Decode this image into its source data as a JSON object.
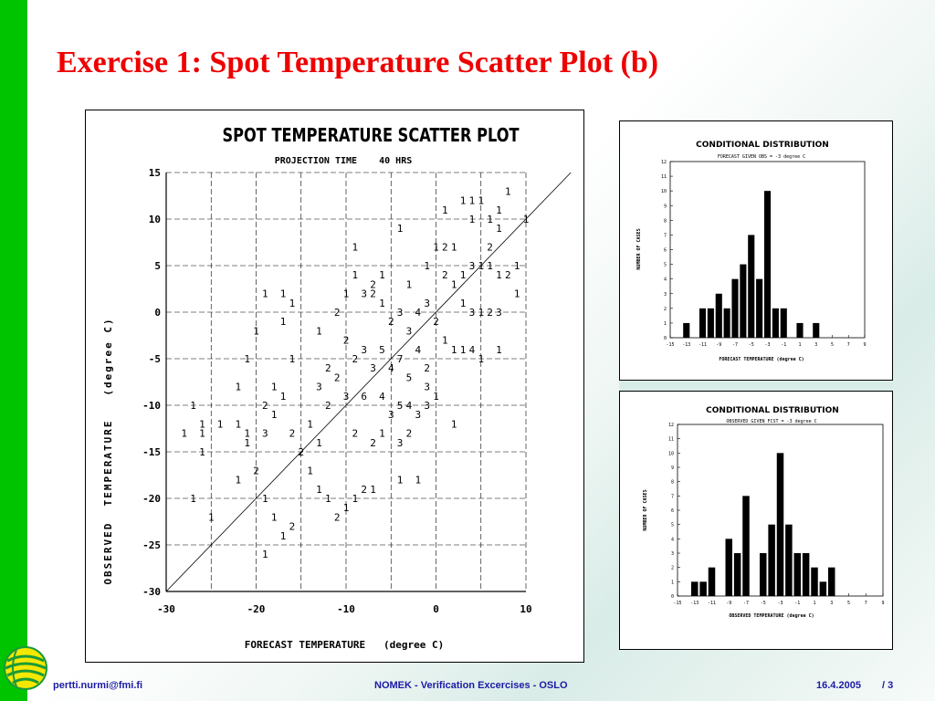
{
  "slide": {
    "title": "Exercise 1: Spot Temperature Scatter Plot (b)",
    "accent_bar_color": "#00c400",
    "title_color": "#ee0000"
  },
  "footer": {
    "email": "pertti.nurmi@fmi.fi",
    "center": "NOMEK - Verification Excercises - OSLO",
    "date": "16.4.2005",
    "page": "/ 3",
    "logo_icon": "fmi-globe-logo-icon"
  },
  "chart_data": [
    {
      "type": "scatter",
      "title": "SPOT TEMPERATURE SCATTER PLOT",
      "subtitle": "PROJECTION TIME    40 HRS",
      "xlabel": "FORECAST TEMPERATURE   (degree C)",
      "ylabel": "OBSERVED  TEMPERATURE   (degree C)",
      "xlim": [
        -30,
        10
      ],
      "ylim": [
        -30,
        15
      ],
      "x_ticks": [
        -30,
        -20,
        -10,
        0,
        10
      ],
      "x_tick_labels": [
        "-30",
        "-20",
        "-10",
        "0",
        "10"
      ],
      "y_ticks": [
        15,
        10,
        5,
        0,
        -5,
        -10,
        -15,
        -20,
        -25,
        -30
      ],
      "y_tick_labels": [
        "15",
        "10",
        "5",
        "0",
        "-5",
        "-10",
        "-15",
        "-20",
        "-25",
        "-30"
      ],
      "grid": true,
      "diagonal": true,
      "point_marker": "count glyph (digit = number of cases)",
      "points": [
        {
          "x": -27,
          "y": -10,
          "n": "1"
        },
        {
          "x": -26,
          "y": -12,
          "n": "1"
        },
        {
          "x": -28,
          "y": -13,
          "n": "1"
        },
        {
          "x": -26,
          "y": -13,
          "n": "1"
        },
        {
          "x": -27,
          "y": -20,
          "n": "1"
        },
        {
          "x": -25,
          "y": -22,
          "n": "1"
        },
        {
          "x": -26,
          "y": -15,
          "n": "1"
        },
        {
          "x": -24,
          "y": -12,
          "n": "1"
        },
        {
          "x": -22,
          "y": -12,
          "n": "1"
        },
        {
          "x": -21,
          "y": -14,
          "n": "1"
        },
        {
          "x": -22,
          "y": -18,
          "n": "1"
        },
        {
          "x": -20,
          "y": -17,
          "n": "2"
        },
        {
          "x": -21,
          "y": -13,
          "n": "1"
        },
        {
          "x": -19,
          "y": -13,
          "n": "3"
        },
        {
          "x": -19,
          "y": -20,
          "n": "1"
        },
        {
          "x": -18,
          "y": -22,
          "n": "1"
        },
        {
          "x": -17,
          "y": -24,
          "n": "1"
        },
        {
          "x": -16,
          "y": -23,
          "n": "2"
        },
        {
          "x": -19,
          "y": -26,
          "n": "1"
        },
        {
          "x": -22,
          "y": -8,
          "n": "1"
        },
        {
          "x": -21,
          "y": -5,
          "n": "1"
        },
        {
          "x": -20,
          "y": -2,
          "n": "1"
        },
        {
          "x": -19,
          "y": 2,
          "n": "1"
        },
        {
          "x": -17,
          "y": 2,
          "n": "1"
        },
        {
          "x": -16,
          "y": 1,
          "n": "1"
        },
        {
          "x": -17,
          "y": -1,
          "n": "1"
        },
        {
          "x": -18,
          "y": -8,
          "n": "1"
        },
        {
          "x": -19,
          "y": -10,
          "n": "2"
        },
        {
          "x": -18,
          "y": -11,
          "n": "1"
        },
        {
          "x": -17,
          "y": -9,
          "n": "1"
        },
        {
          "x": -16,
          "y": -5,
          "n": "1"
        },
        {
          "x": -16,
          "y": -13,
          "n": "2"
        },
        {
          "x": -15,
          "y": -15,
          "n": "2"
        },
        {
          "x": -14,
          "y": -12,
          "n": "1"
        },
        {
          "x": -13,
          "y": -8,
          "n": "3"
        },
        {
          "x": -12,
          "y": -6,
          "n": "2"
        },
        {
          "x": -11,
          "y": -7,
          "n": "2"
        },
        {
          "x": -12,
          "y": -10,
          "n": "2"
        },
        {
          "x": -13,
          "y": -14,
          "n": "1"
        },
        {
          "x": -14,
          "y": -17,
          "n": "1"
        },
        {
          "x": -13,
          "y": -19,
          "n": "1"
        },
        {
          "x": -12,
          "y": -20,
          "n": "1"
        },
        {
          "x": -11,
          "y": -22,
          "n": "2"
        },
        {
          "x": -10,
          "y": -21,
          "n": "1"
        },
        {
          "x": -9,
          "y": -20,
          "n": "1"
        },
        {
          "x": -8,
          "y": -19,
          "n": "2"
        },
        {
          "x": -7,
          "y": -19,
          "n": "1"
        },
        {
          "x": -13,
          "y": -2,
          "n": "1"
        },
        {
          "x": -11,
          "y": 0,
          "n": "2"
        },
        {
          "x": -10,
          "y": 2,
          "n": "1"
        },
        {
          "x": -9,
          "y": 4,
          "n": "1"
        },
        {
          "x": -8,
          "y": 2,
          "n": "3"
        },
        {
          "x": -7,
          "y": 2,
          "n": "2"
        },
        {
          "x": -9,
          "y": 7,
          "n": "1"
        },
        {
          "x": -6,
          "y": 4,
          "n": "1"
        },
        {
          "x": -4,
          "y": 9,
          "n": "1"
        },
        {
          "x": -10,
          "y": -3,
          "n": "2"
        },
        {
          "x": -9,
          "y": -5,
          "n": "2"
        },
        {
          "x": -8,
          "y": -4,
          "n": "3"
        },
        {
          "x": -7,
          "y": -6,
          "n": "3"
        },
        {
          "x": -6,
          "y": -4,
          "n": "5"
        },
        {
          "x": -5,
          "y": -6,
          "n": "4"
        },
        {
          "x": -4,
          "y": -5,
          "n": "7"
        },
        {
          "x": -3,
          "y": -7,
          "n": "5"
        },
        {
          "x": -2,
          "y": -4,
          "n": "4"
        },
        {
          "x": -1,
          "y": -8,
          "n": "3"
        },
        {
          "x": -10,
          "y": -9,
          "n": "3"
        },
        {
          "x": -8,
          "y": -9,
          "n": "6"
        },
        {
          "x": -6,
          "y": -9,
          "n": "4"
        },
        {
          "x": -5,
          "y": -11,
          "n": "3"
        },
        {
          "x": -4,
          "y": -10,
          "n": "5"
        },
        {
          "x": -3,
          "y": -10,
          "n": "4"
        },
        {
          "x": -2,
          "y": -11,
          "n": "3"
        },
        {
          "x": -9,
          "y": -13,
          "n": "2"
        },
        {
          "x": -7,
          "y": -14,
          "n": "2"
        },
        {
          "x": -6,
          "y": -13,
          "n": "1"
        },
        {
          "x": -4,
          "y": -14,
          "n": "3"
        },
        {
          "x": -3,
          "y": -13,
          "n": "2"
        },
        {
          "x": -5,
          "y": -1,
          "n": "2"
        },
        {
          "x": -4,
          "y": 0,
          "n": "3"
        },
        {
          "x": -3,
          "y": -2,
          "n": "3"
        },
        {
          "x": -2,
          "y": 0,
          "n": "4"
        },
        {
          "x": -1,
          "y": 1,
          "n": "3"
        },
        {
          "x": 0,
          "y": -1,
          "n": "2"
        },
        {
          "x": 1,
          "y": -3,
          "n": "1"
        },
        {
          "x": -1,
          "y": -6,
          "n": "2"
        },
        {
          "x": 0,
          "y": -9,
          "n": "1"
        },
        {
          "x": -1,
          "y": -10,
          "n": "3"
        },
        {
          "x": 2,
          "y": -12,
          "n": "1"
        },
        {
          "x": -4,
          "y": -18,
          "n": "1"
        },
        {
          "x": -2,
          "y": -18,
          "n": "1"
        },
        {
          "x": -6,
          "y": 1,
          "n": "1"
        },
        {
          "x": -7,
          "y": 3,
          "n": "2"
        },
        {
          "x": -3,
          "y": 3,
          "n": "1"
        },
        {
          "x": -1,
          "y": 5,
          "n": "1"
        },
        {
          "x": 0,
          "y": 7,
          "n": "1"
        },
        {
          "x": 1,
          "y": 7,
          "n": "2"
        },
        {
          "x": 2,
          "y": 7,
          "n": "1"
        },
        {
          "x": 1,
          "y": 4,
          "n": "2"
        },
        {
          "x": 2,
          "y": 3,
          "n": "1"
        },
        {
          "x": 3,
          "y": 4,
          "n": "1"
        },
        {
          "x": 4,
          "y": 5,
          "n": "3"
        },
        {
          "x": 5,
          "y": 5,
          "n": "1"
        },
        {
          "x": 3,
          "y": 1,
          "n": "1"
        },
        {
          "x": 4,
          "y": 0,
          "n": "3"
        },
        {
          "x": 5,
          "y": 0,
          "n": "1"
        },
        {
          "x": 6,
          "y": 0,
          "n": "2"
        },
        {
          "x": 7,
          "y": 0,
          "n": "3"
        },
        {
          "x": 2,
          "y": -4,
          "n": "1"
        },
        {
          "x": 3,
          "y": -4,
          "n": "1"
        },
        {
          "x": 4,
          "y": -4,
          "n": "4"
        },
        {
          "x": 5,
          "y": -5,
          "n": "1"
        },
        {
          "x": 7,
          "y": -4,
          "n": "1"
        },
        {
          "x": 1,
          "y": 11,
          "n": "1"
        },
        {
          "x": 3,
          "y": 12,
          "n": "1"
        },
        {
          "x": 4,
          "y": 12,
          "n": "1"
        },
        {
          "x": 5,
          "y": 12,
          "n": "1"
        },
        {
          "x": 4,
          "y": 10,
          "n": "1"
        },
        {
          "x": 6,
          "y": 10,
          "n": "1"
        },
        {
          "x": 7,
          "y": 11,
          "n": "1"
        },
        {
          "x": 8,
          "y": 13,
          "n": "1"
        },
        {
          "x": 7,
          "y": 9,
          "n": "1"
        },
        {
          "x": 6,
          "y": 7,
          "n": "2"
        },
        {
          "x": 6,
          "y": 5,
          "n": "1"
        },
        {
          "x": 7,
          "y": 4,
          "n": "1"
        },
        {
          "x": 8,
          "y": 4,
          "n": "2"
        },
        {
          "x": 9,
          "y": 5,
          "n": "1"
        },
        {
          "x": 9,
          "y": 2,
          "n": "1"
        },
        {
          "x": 10,
          "y": 10,
          "n": "1"
        }
      ]
    },
    {
      "type": "bar",
      "title": "CONDITIONAL DISTRIBUTION",
      "subtitle": "FORECAST GIVEN OBS = -3 degree C",
      "xlabel": "FORECAST TEMPERATURE  (degree C)",
      "ylabel": "NUMBER OF CASES",
      "x": [
        -15,
        -14,
        -13,
        -12,
        -11,
        -10,
        -9,
        -8,
        -7,
        -6,
        -5,
        -4,
        -3,
        -2,
        -1,
        0,
        1,
        2,
        3,
        4,
        5,
        6,
        7,
        8,
        9
      ],
      "values": [
        0,
        0,
        1,
        0,
        2,
        2,
        3,
        2,
        4,
        5,
        7,
        4,
        10,
        2,
        2,
        0,
        1,
        0,
        1,
        0,
        0,
        0,
        0,
        0,
        0
      ],
      "x_tick_labels": [
        "-15",
        "-13",
        "-11",
        "-9",
        "-7",
        "-5",
        "-3",
        "-1",
        "1",
        "3",
        "5",
        "7",
        "9"
      ],
      "y_tick_labels": [
        "0",
        "1",
        "2",
        "3",
        "4",
        "5",
        "6",
        "7",
        "8",
        "9",
        "10",
        "11",
        "12"
      ],
      "xlim": [
        -15,
        9
      ],
      "ylim": [
        0,
        12
      ]
    },
    {
      "type": "bar",
      "title": "CONDITIONAL DISTRIBUTION",
      "subtitle": "OBSERVED GIVEN FCST = -3 degree C",
      "xlabel": "OBSERVED TEMPERATURE  (degree C)",
      "ylabel": "NUMBER OF CASES",
      "x": [
        -15,
        -14,
        -13,
        -12,
        -11,
        -10,
        -9,
        -8,
        -7,
        -6,
        -5,
        -4,
        -3,
        -2,
        -1,
        0,
        1,
        2,
        3,
        4,
        5,
        6,
        7,
        8,
        9
      ],
      "values": [
        0,
        0,
        1,
        1,
        2,
        0,
        4,
        3,
        7,
        0,
        3,
        5,
        10,
        5,
        3,
        3,
        2,
        1,
        2,
        0,
        0,
        0,
        0,
        0,
        0
      ],
      "x_tick_labels": [
        "-15",
        "-13",
        "-11",
        "-9",
        "-7",
        "-5",
        "-3",
        "-1",
        "1",
        "3",
        "5",
        "7",
        "9"
      ],
      "y_tick_labels": [
        "0",
        "1",
        "2",
        "3",
        "4",
        "5",
        "6",
        "7",
        "8",
        "9",
        "10",
        "11",
        "12"
      ],
      "xlim": [
        -15,
        9
      ],
      "ylim": [
        0,
        12
      ]
    }
  ]
}
